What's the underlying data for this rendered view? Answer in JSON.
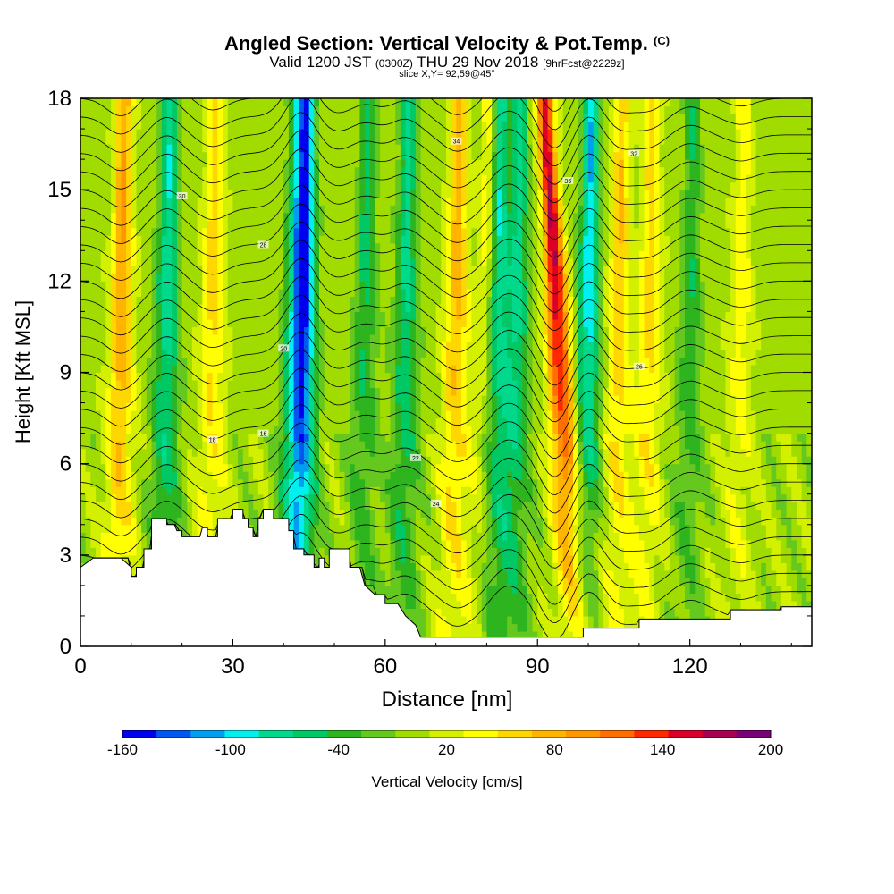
{
  "header": {
    "title": "Angled Section: Vertical Velocity & Pot.Temp.",
    "title_units": "(C)",
    "valid_prefix": "Valid 1200 JST",
    "valid_zulu": "(0300Z)",
    "valid_date": "THU 29 Nov 2018",
    "forecast": "[9hrFcst@2229z]",
    "slice": "slice X,Y= 92,59@45°"
  },
  "chart_data": {
    "type": "heatmap",
    "title": "Angled Section: Vertical Velocity & Pot.Temp.",
    "xlabel": "Distance [nm]",
    "ylabel": "Height [Kft MSL]",
    "xlim": [
      0,
      144
    ],
    "ylim": [
      0,
      18
    ],
    "x_ticks": [
      0,
      30,
      60,
      90,
      120
    ],
    "y_ticks": [
      0,
      3,
      6,
      9,
      12,
      15,
      18
    ],
    "colorbar": {
      "label": "Vertical Velocity [cm/s]",
      "tick_labels": [
        "-160",
        "-100",
        "-40",
        "20",
        "80",
        "140",
        "200"
      ],
      "min": -160,
      "max": 200,
      "step": 20,
      "colors": [
        "#0000f0",
        "#0058f0",
        "#009ef0",
        "#00f0f0",
        "#00d88c",
        "#00c864",
        "#2db41e",
        "#64c81e",
        "#a0dc00",
        "#d2f000",
        "#ffff00",
        "#ffd700",
        "#ffb400",
        "#ff9600",
        "#ff6e00",
        "#ff2800",
        "#dc0028",
        "#aa0050",
        "#780078"
      ]
    },
    "updrafts": [
      {
        "x": 8,
        "v": 90
      },
      {
        "x": 26,
        "v": 60
      },
      {
        "x": 74,
        "v": 80
      },
      {
        "x": 80,
        "v": 50
      },
      {
        "x": 93.5,
        "v": 170
      },
      {
        "x": 106,
        "v": 70
      },
      {
        "x": 112,
        "v": 60
      },
      {
        "x": 130,
        "v": 40
      }
    ],
    "downdrafts": [
      {
        "x": 17,
        "v": -90
      },
      {
        "x": 42,
        "v": -70
      },
      {
        "x": 44,
        "v": -150
      },
      {
        "x": 56,
        "v": -60
      },
      {
        "x": 64,
        "v": -80
      },
      {
        "x": 82,
        "v": -100
      },
      {
        "x": 86,
        "v": -80
      },
      {
        "x": 100,
        "v": -110
      },
      {
        "x": 120,
        "v": -50
      }
    ],
    "terrain": [
      [
        0,
        2.6
      ],
      [
        2.5,
        2.9
      ],
      [
        8,
        2.9
      ],
      [
        10,
        2.6
      ],
      [
        10,
        2.3
      ],
      [
        11,
        2.3
      ],
      [
        11,
        2.6
      ],
      [
        12.5,
        2.6
      ],
      [
        12.5,
        3.2
      ],
      [
        14,
        3.2
      ],
      [
        14,
        4.2
      ],
      [
        17,
        4.2
      ],
      [
        17,
        4.0
      ],
      [
        18.5,
        4.0
      ],
      [
        19,
        3.8
      ],
      [
        20,
        3.8
      ],
      [
        20,
        3.6
      ],
      [
        23.5,
        3.6
      ],
      [
        24,
        3.9
      ],
      [
        25,
        3.9
      ],
      [
        25,
        3.6
      ],
      [
        27,
        3.6
      ],
      [
        27,
        4.2
      ],
      [
        30,
        4.2
      ],
      [
        30,
        4.5
      ],
      [
        32,
        4.5
      ],
      [
        32,
        4.2
      ],
      [
        33,
        4.2
      ],
      [
        33,
        3.9
      ],
      [
        34,
        3.9
      ],
      [
        34,
        3.6
      ],
      [
        35,
        3.6
      ],
      [
        35,
        4.2
      ],
      [
        36,
        4.2
      ],
      [
        36,
        4.5
      ],
      [
        38,
        4.5
      ],
      [
        38,
        4.2
      ],
      [
        41,
        4.2
      ],
      [
        41,
        3.8
      ],
      [
        42,
        3.8
      ],
      [
        42,
        3.2
      ],
      [
        44,
        3.2
      ],
      [
        44,
        3.0
      ],
      [
        46,
        3.0
      ],
      [
        46,
        2.6
      ],
      [
        47,
        2.6
      ],
      [
        47,
        2.9
      ],
      [
        48,
        2.9
      ],
      [
        48,
        2.6
      ],
      [
        49,
        2.6
      ],
      [
        49,
        3.2
      ],
      [
        53,
        3.2
      ],
      [
        53,
        2.6
      ],
      [
        55,
        2.6
      ],
      [
        56,
        2.0
      ],
      [
        58,
        1.7
      ],
      [
        60,
        1.7
      ],
      [
        60,
        1.4
      ],
      [
        62.5,
        1.4
      ],
      [
        64,
        1.0
      ],
      [
        66,
        0.7
      ],
      [
        67,
        0.3
      ],
      [
        99,
        0.3
      ],
      [
        99,
        0.6
      ],
      [
        110,
        0.6
      ],
      [
        110,
        0.9
      ],
      [
        120,
        0.9
      ],
      [
        128,
        0.9
      ],
      [
        128,
        1.2
      ],
      [
        138,
        1.2
      ],
      [
        138,
        1.3
      ],
      [
        144,
        1.3
      ]
    ],
    "isentrope_labels": [
      "16",
      "18",
      "20",
      "22",
      "24",
      "26",
      "28",
      "30",
      "32",
      "34",
      "36"
    ]
  }
}
